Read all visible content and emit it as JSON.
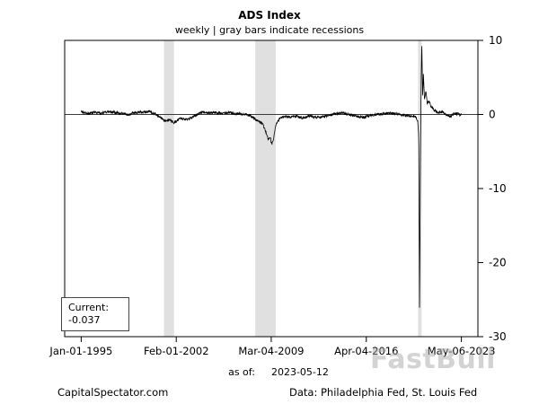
{
  "title": "ADS Index",
  "subtitle": "weekly | gray bars indicate recessions",
  "current_box": {
    "label": "Current:",
    "value": "-0.037"
  },
  "as_of": {
    "label": "as of:",
    "date": "2023-05-12"
  },
  "footer": {
    "left": "CapitalSpectator.com",
    "right": "Data: Philadelphia Fed, St. Louis Fed"
  },
  "watermark": "FastBull",
  "chart_data": {
    "type": "line",
    "title": "ADS Index",
    "subtitle": "weekly | gray bars indicate recessions",
    "xlabel": "",
    "ylabel": "",
    "x_domain_years": [
      1995.0,
      2023.35
    ],
    "x_ticks": [
      {
        "year": 1995.0,
        "label": "Jan-01-1995"
      },
      {
        "year": 2002.09,
        "label": "Feb-01-2002"
      },
      {
        "year": 2009.17,
        "label": "Mar-04-2009"
      },
      {
        "year": 2016.26,
        "label": "Apr-04-2016"
      },
      {
        "year": 2023.35,
        "label": "May-06-2023"
      }
    ],
    "ylim": [
      -30,
      10
    ],
    "y_ticks": [
      10,
      0,
      -10,
      -20,
      -30
    ],
    "grid": false,
    "legend": false,
    "line_color": "#000000",
    "zero_line_value": 0,
    "zero_line_color": "#cc0000",
    "recession_band_color": "#e0e0e0",
    "recessions_years": [
      [
        2001.17,
        2001.92
      ],
      [
        2007.98,
        2009.5
      ],
      [
        2020.12,
        2020.38
      ]
    ],
    "samples_per_year": 52,
    "noise_amplitude": 0.18,
    "noise_seed": 20230512,
    "noise_suppress_range": [
      2020.12,
      2020.68
    ],
    "current_value": -0.037,
    "keypoints": [
      [
        1995.0,
        0.3
      ],
      [
        1995.5,
        0.1
      ],
      [
        1996.0,
        0.35
      ],
      [
        1996.5,
        0.15
      ],
      [
        1997.0,
        0.4
      ],
      [
        1997.5,
        0.25
      ],
      [
        1998.0,
        0.15
      ],
      [
        1998.5,
        0.0
      ],
      [
        1999.0,
        0.3
      ],
      [
        1999.5,
        0.3
      ],
      [
        2000.0,
        0.4
      ],
      [
        2000.5,
        0.1
      ],
      [
        2000.9,
        -0.4
      ],
      [
        2001.3,
        -0.9
      ],
      [
        2001.6,
        -0.7
      ],
      [
        2001.9,
        -1.1
      ],
      [
        2002.1,
        -0.9
      ],
      [
        2002.4,
        -0.5
      ],
      [
        2002.8,
        -0.7
      ],
      [
        2003.2,
        -0.5
      ],
      [
        2003.6,
        0.0
      ],
      [
        2004.0,
        0.3
      ],
      [
        2004.5,
        0.2
      ],
      [
        2005.0,
        0.25
      ],
      [
        2005.5,
        0.1
      ],
      [
        2006.0,
        0.3
      ],
      [
        2006.5,
        0.1
      ],
      [
        2007.0,
        0.1
      ],
      [
        2007.5,
        -0.1
      ],
      [
        2007.9,
        -0.5
      ],
      [
        2008.2,
        -0.9
      ],
      [
        2008.5,
        -1.2
      ],
      [
        2008.75,
        -2.2
      ],
      [
        2008.95,
        -3.4
      ],
      [
        2009.1,
        -3.0
      ],
      [
        2009.2,
        -4.1
      ],
      [
        2009.35,
        -3.2
      ],
      [
        2009.5,
        -1.5
      ],
      [
        2009.8,
        -0.6
      ],
      [
        2010.2,
        -0.2
      ],
      [
        2010.6,
        -0.4
      ],
      [
        2011.0,
        -0.2
      ],
      [
        2011.5,
        -0.5
      ],
      [
        2012.0,
        -0.2
      ],
      [
        2012.5,
        -0.4
      ],
      [
        2013.0,
        -0.3
      ],
      [
        2013.5,
        -0.1
      ],
      [
        2014.0,
        0.1
      ],
      [
        2014.5,
        0.2
      ],
      [
        2015.0,
        0.0
      ],
      [
        2015.5,
        -0.2
      ],
      [
        2016.0,
        -0.4
      ],
      [
        2016.5,
        -0.2
      ],
      [
        2017.0,
        0.0
      ],
      [
        2017.5,
        0.1
      ],
      [
        2018.0,
        0.2
      ],
      [
        2018.5,
        0.1
      ],
      [
        2019.0,
        -0.1
      ],
      [
        2019.5,
        -0.2
      ],
      [
        2019.95,
        -0.3
      ],
      [
        2020.1,
        -0.9
      ],
      [
        2020.17,
        -3.0
      ],
      [
        2020.23,
        -26.3
      ],
      [
        2020.29,
        -9.0
      ],
      [
        2020.33,
        1.5
      ],
      [
        2020.4,
        9.7
      ],
      [
        2020.46,
        2.5
      ],
      [
        2020.52,
        5.5
      ],
      [
        2020.6,
        2.0
      ],
      [
        2020.7,
        3.2
      ],
      [
        2020.8,
        1.5
      ],
      [
        2020.95,
        1.8
      ],
      [
        2021.1,
        1.0
      ],
      [
        2021.3,
        0.6
      ],
      [
        2021.6,
        0.3
      ],
      [
        2021.9,
        0.4
      ],
      [
        2022.2,
        0.0
      ],
      [
        2022.5,
        -0.3
      ],
      [
        2022.8,
        0.1
      ],
      [
        2023.1,
        0.05
      ],
      [
        2023.35,
        -0.037
      ]
    ]
  }
}
